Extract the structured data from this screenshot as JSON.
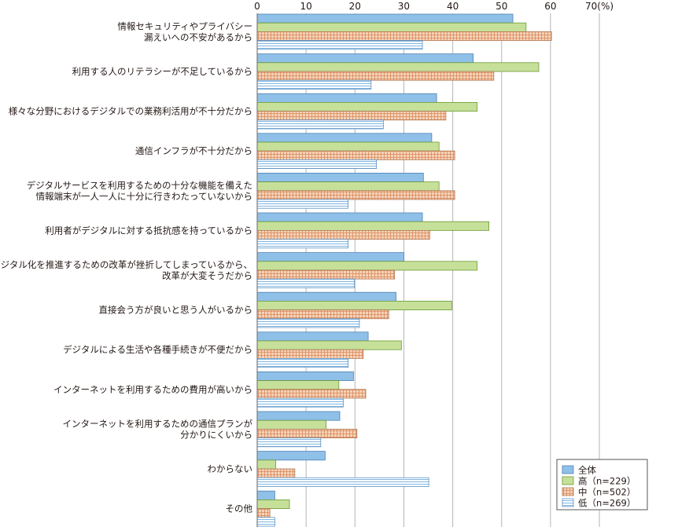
{
  "chart_data": {
    "type": "bar",
    "orientation": "horizontal",
    "unit": "(%)",
    "xlim": [
      0,
      70
    ],
    "ticks": [
      0,
      10,
      20,
      30,
      40,
      50,
      60,
      70
    ],
    "tick_labels": [
      "0",
      "10",
      "20",
      "30",
      "40",
      "50",
      "60",
      "70"
    ],
    "grid": true,
    "legend_position": "bottom-right",
    "categories": [
      [
        "情報セキュリティやプライバシー",
        "漏えいへの不安があるから"
      ],
      [
        "利用する人のリテラシーが不足しているから"
      ],
      [
        "様々な分野におけるデジタルでの業務利活用が不十分だから"
      ],
      [
        "通信インフラが不十分だから"
      ],
      [
        "デジタルサービスを利用するための十分な機能を備えた",
        "情報端末が一人一人に十分に行きわたっていないから"
      ],
      [
        "利用者がデジタルに対する抵抗感を持っているから"
      ],
      [
        "デジタル化を推進するための改革が挫折してしまっているから、",
        "改革が大変そうだから"
      ],
      [
        "直接会う方が良いと思う人がいるから"
      ],
      [
        "デジタルによる生活や各種手続きが不便だから"
      ],
      [
        "インターネットを利用するための費用が高いから"
      ],
      [
        "インターネットを利用するための通信プランが",
        "分かりにくいから"
      ],
      [
        "わからない"
      ],
      [
        "その他"
      ]
    ],
    "series": [
      {
        "name": "全体",
        "color": "#8fc0e8",
        "pattern": "solid",
        "values": [
          52.3,
          44.2,
          36.7,
          35.7,
          34.0,
          33.8,
          30.0,
          28.4,
          22.7,
          19.7,
          16.9,
          13.9,
          3.6
        ]
      },
      {
        "name": "高（n=229）",
        "color": "#c6e09a",
        "pattern": "solid",
        "values": [
          55.0,
          57.6,
          45.0,
          37.2,
          37.2,
          47.4,
          45.0,
          39.8,
          29.5,
          16.7,
          14.1,
          3.8,
          6.6
        ]
      },
      {
        "name": "中（n=502）",
        "color": "#f3cdb0",
        "pattern": "grid",
        "values": [
          60.2,
          48.4,
          38.6,
          40.4,
          40.4,
          35.3,
          28.1,
          26.9,
          21.7,
          22.2,
          20.4,
          7.7,
          2.6
        ]
      },
      {
        "name": "低（n=269）",
        "color": "#dcecf8",
        "pattern": "hlines",
        "values": [
          33.8,
          23.3,
          25.8,
          24.4,
          18.6,
          18.6,
          19.9,
          20.9,
          18.6,
          17.6,
          13.0,
          35.1,
          3.6
        ]
      }
    ]
  }
}
